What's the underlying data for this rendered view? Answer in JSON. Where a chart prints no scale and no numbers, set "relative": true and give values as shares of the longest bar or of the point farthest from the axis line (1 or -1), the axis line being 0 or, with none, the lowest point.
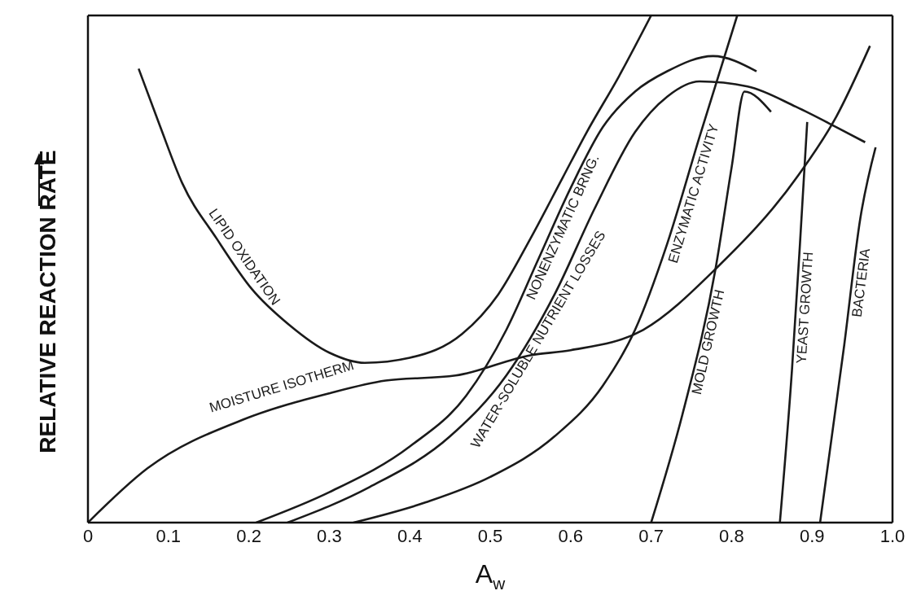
{
  "chart_data": {
    "type": "line",
    "xlabel": "A$_{w}$",
    "ylabel": "RELATIVE REACTION RATE",
    "relative": true,
    "xlim": [
      0,
      1.0
    ],
    "xticks": [
      0,
      0.1,
      0.2,
      0.3,
      0.4,
      0.5,
      0.6,
      0.7,
      0.8,
      0.9,
      {
        "value": 1.0,
        "label": "1.0"
      }
    ],
    "marker": "none",
    "line_style": "solid",
    "series": [
      {
        "name": "LIPID OXIDATION",
        "color": "#1a1a1a",
        "x": [
          0.063,
          0.09,
          0.117,
          0.16,
          0.204,
          0.25,
          0.3,
          0.344,
          0.4,
          0.465,
          0.51,
          0.55,
          0.59,
          0.62,
          0.66,
          0.7
        ],
        "values": [
          0.895,
          0.78,
          0.67,
          0.56,
          0.46,
          0.39,
          0.335,
          0.315,
          0.325,
          0.372,
          0.45,
          0.56,
          0.68,
          0.77,
          0.88,
          1.0
        ]
      },
      {
        "name": "MOISTURE ISOTHERM",
        "color": "#1a1a1a",
        "x": [
          0,
          0.074,
          0.196,
          0.3,
          0.37,
          0.457,
          0.55,
          0.6,
          0.69,
          0.78,
          0.883,
          0.93,
          0.972
        ],
        "values": [
          0,
          0.107,
          0.205,
          0.255,
          0.28,
          0.29,
          0.33,
          0.34,
          0.38,
          0.5,
          0.685,
          0.8,
          0.94
        ]
      },
      {
        "name": "NONENZYMATIC BRNG.",
        "color": "#1a1a1a",
        "x": [
          0.209,
          0.3,
          0.4,
          0.47,
          0.52,
          0.56,
          0.6,
          0.64,
          0.68,
          0.72,
          0.777,
          0.831
        ],
        "values": [
          0,
          0.06,
          0.15,
          0.25,
          0.38,
          0.52,
          0.66,
          0.78,
          0.85,
          0.89,
          0.92,
          0.89
        ]
      },
      {
        "name": "WATER-SOLUBLE NUTRIENT LOSSES",
        "color": "#1a1a1a",
        "x": [
          0.248,
          0.35,
          0.45,
          0.52,
          0.58,
          0.63,
          0.68,
          0.72,
          0.76,
          0.82,
          0.88,
          0.93,
          0.966
        ],
        "values": [
          0,
          0.07,
          0.17,
          0.29,
          0.45,
          0.62,
          0.77,
          0.84,
          0.87,
          0.86,
          0.82,
          0.78,
          0.75
        ]
      },
      {
        "name": "ENZYMATIC ACTIVITY",
        "color": "#1a1a1a",
        "x": [
          0.33,
          0.42,
          0.5,
          0.58,
          0.64,
          0.68,
          0.72,
          0.76,
          0.807
        ],
        "values": [
          0,
          0.04,
          0.09,
          0.17,
          0.27,
          0.38,
          0.55,
          0.76,
          1.0
        ]
      },
      {
        "name": "MOLD GROWTH",
        "color": "#1a1a1a",
        "x": [
          0.7,
          0.74,
          0.78,
          0.8,
          0.816,
          0.849
        ],
        "values": [
          0,
          0.22,
          0.5,
          0.7,
          0.85,
          0.81
        ]
      },
      {
        "name": "YEAST GROWTH",
        "color": "#1a1a1a",
        "x": [
          0.86,
          0.875,
          0.885,
          0.894
        ],
        "values": [
          0,
          0.3,
          0.55,
          0.79
        ]
      },
      {
        "name": "BACTERIA",
        "color": "#1a1a1a",
        "x": [
          0.91,
          0.94,
          0.96,
          0.979
        ],
        "values": [
          0,
          0.35,
          0.6,
          0.74
        ]
      }
    ]
  }
}
